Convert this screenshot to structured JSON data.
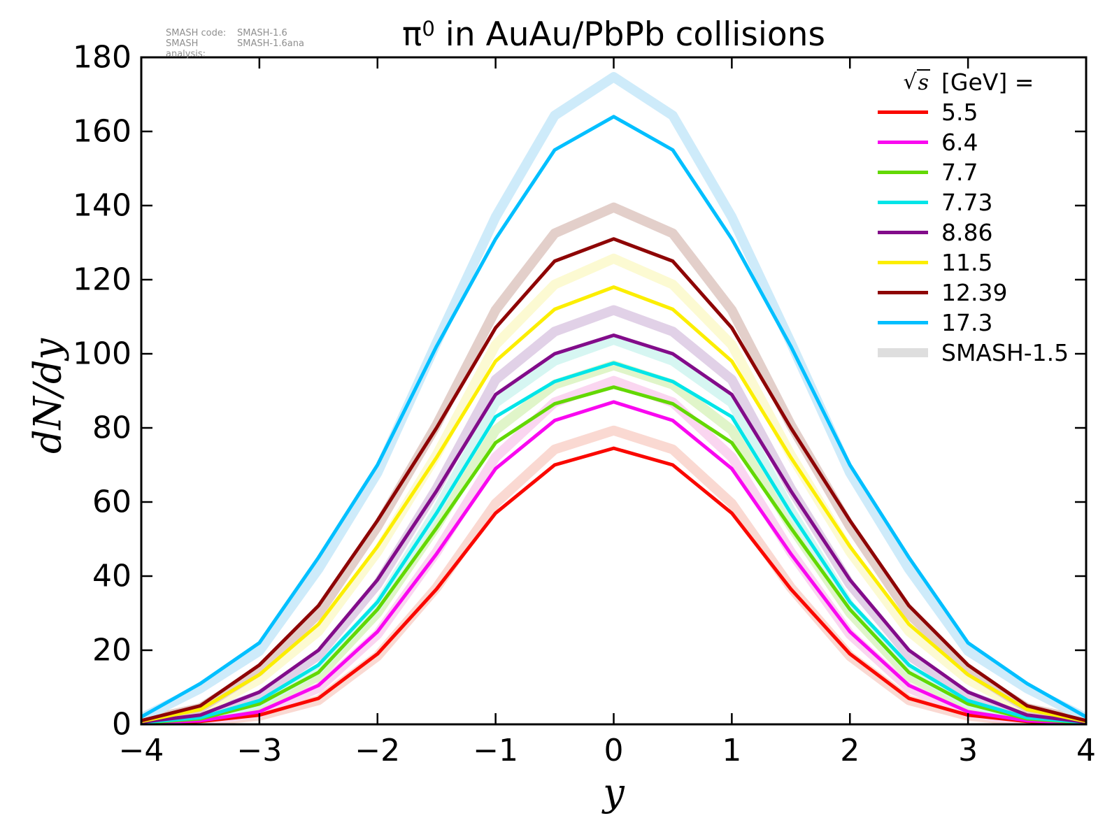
{
  "title": {
    "prefix": "π",
    "superscript": "0",
    "rest": " in AuAu/PbPb collisions"
  },
  "annotation": {
    "rows": [
      {
        "label": "SMASH code:",
        "value": "SMASH-1.6"
      },
      {
        "label": "SMASH analysis:",
        "value": "SMASH-1.6ana"
      }
    ]
  },
  "axes": {
    "xlabel": "y",
    "ylabel": "dN/dy",
    "xticks": [
      {
        "v": -4,
        "label": "−4"
      },
      {
        "v": -3,
        "label": "−3"
      },
      {
        "v": -2,
        "label": "−2"
      },
      {
        "v": -1,
        "label": "−1"
      },
      {
        "v": 0,
        "label": "0"
      },
      {
        "v": 1,
        "label": "1"
      },
      {
        "v": 2,
        "label": "2"
      },
      {
        "v": 3,
        "label": "3"
      },
      {
        "v": 4,
        "label": "4"
      }
    ],
    "yticks": [
      {
        "v": 0,
        "label": "0"
      },
      {
        "v": 20,
        "label": "20"
      },
      {
        "v": 40,
        "label": "40"
      },
      {
        "v": 60,
        "label": "60"
      },
      {
        "v": 80,
        "label": "80"
      },
      {
        "v": 100,
        "label": "100"
      },
      {
        "v": 120,
        "label": "120"
      },
      {
        "v": 140,
        "label": "140"
      },
      {
        "v": 160,
        "label": "160"
      },
      {
        "v": 180,
        "label": "180"
      }
    ]
  },
  "legend": {
    "header_sqrt": "√",
    "header_sqrt_arg": "s",
    "header_units": "[GeV] ="
  },
  "chart_data": {
    "type": "line",
    "title": "π⁰ in AuAu/PbPb collisions",
    "xlabel": "y",
    "ylabel": "dN/dy",
    "xlim": [
      -4,
      4
    ],
    "ylim": [
      0,
      180
    ],
    "grid": false,
    "legend_position": "upper right",
    "legend_title": "√s [GeV] =",
    "band_legend_label": "SMASH-1.5",
    "band_legend_color": "#dedede",
    "x": [
      -4,
      -3.5,
      -3,
      -2.5,
      -2,
      -1.5,
      -1,
      -0.5,
      0,
      0.5,
      1,
      1.5,
      2,
      2.5,
      3,
      3.5,
      4
    ],
    "series": [
      {
        "name": "5.5",
        "color": "#fa0800",
        "band_color": "#fad9d2",
        "values": [
          0.2,
          0.8,
          2.5,
          7,
          19,
          36.5,
          57,
          70,
          74.5,
          70,
          57,
          36.5,
          19,
          7,
          2.5,
          0.8,
          0.2
        ],
        "smash15_values": [
          0.2,
          0.7,
          2.3,
          6.5,
          18.4,
          36.9,
          59.6,
          74.2,
          79.3,
          74.2,
          59.6,
          36.9,
          18.4,
          6.5,
          2.3,
          0.7,
          0.2
        ]
      },
      {
        "name": "6.4",
        "color": "#f908f0",
        "band_color": "#fad6f0",
        "values": [
          0.3,
          1,
          3.4,
          10.5,
          25,
          46,
          69,
          82,
          87,
          82,
          69,
          46,
          25,
          10.5,
          3.4,
          1,
          0.3
        ],
        "smash15_values": [
          0.3,
          0.9,
          3.1,
          9.8,
          24.3,
          46.5,
          72.1,
          86.9,
          92.7,
          86.9,
          72.1,
          46.5,
          24.3,
          9.8,
          3.1,
          0.9,
          0.3
        ]
      },
      {
        "name": "7.7",
        "color": "#63d803",
        "band_color": "#e0f5c9",
        "values": [
          0.4,
          1.5,
          5.5,
          14,
          31,
          53,
          76,
          86.5,
          91,
          86.5,
          76,
          53,
          31,
          14,
          5.5,
          1.5,
          0.4
        ],
        "smash15_values": [
          0.3,
          1.3,
          5,
          13,
          30.1,
          53.5,
          79.4,
          91.7,
          96.9,
          91.7,
          79.4,
          53.5,
          30.1,
          13,
          5,
          1.3,
          0.3
        ]
      },
      {
        "name": "7.73",
        "color": "#00e5e8",
        "band_color": "#d6f6f2",
        "values": [
          0.5,
          1.8,
          6.4,
          16,
          33,
          57,
          83,
          92.5,
          97.5,
          92.5,
          83,
          57,
          33,
          16,
          6.4,
          1.8,
          0.5
        ],
        "smash15_values": [
          0.4,
          1.6,
          5.8,
          14.9,
          32,
          57.6,
          86.8,
          98.1,
          103.8,
          98.1,
          86.8,
          57.6,
          32,
          14.9,
          5.8,
          1.6,
          0.4
        ]
      },
      {
        "name": "8.86",
        "color": "#820c8a",
        "band_color": "#e1d1e7",
        "values": [
          0.6,
          2.5,
          8.7,
          20,
          39,
          63,
          89,
          100,
          105,
          100,
          89,
          63,
          39,
          20,
          8.7,
          2.5,
          0.6
        ],
        "smash15_values": [
          0.5,
          2.2,
          7.8,
          18.6,
          37.8,
          63.6,
          93,
          106,
          111.8,
          106,
          93,
          63.6,
          37.8,
          18.6,
          7.8,
          2.2,
          0.5
        ]
      },
      {
        "name": "11.5",
        "color": "#fcee00",
        "band_color": "#fcfad2",
        "values": [
          0.8,
          4,
          13.4,
          27,
          48,
          72,
          98,
          112,
          118,
          112,
          98,
          72,
          48,
          27,
          13.4,
          4,
          0.8
        ],
        "smash15_values": [
          0.7,
          3.5,
          12.1,
          25.1,
          46.6,
          72.7,
          102.4,
          118.7,
          125.7,
          118.7,
          102.4,
          72.7,
          46.6,
          25.1,
          12.1,
          3.5,
          0.7
        ]
      },
      {
        "name": "12.39",
        "color": "#8e0505",
        "band_color": "#e3cfca",
        "values": [
          1,
          5,
          16,
          32,
          55,
          80,
          107,
          125,
          131,
          125,
          107,
          80,
          55,
          32,
          16,
          5,
          1
        ],
        "smash15_values": [
          0.9,
          4.4,
          14.4,
          29.8,
          53.4,
          80.8,
          111.8,
          132.5,
          139.5,
          132.5,
          111.8,
          80.8,
          53.4,
          29.8,
          14.4,
          4.4,
          0.9
        ]
      },
      {
        "name": "17.3",
        "color": "#00bfff",
        "band_color": "#ceebfa",
        "values": [
          2,
          11,
          22,
          45,
          70,
          102,
          131,
          155,
          164,
          155,
          131,
          102,
          70,
          45,
          22,
          11,
          2
        ],
        "smash15_values": [
          1.7,
          9.7,
          19.8,
          41.9,
          67.9,
          103,
          136.9,
          164.3,
          174.7,
          164.3,
          136.9,
          103,
          67.9,
          41.9,
          19.8,
          9.7,
          1.7
        ]
      }
    ]
  }
}
